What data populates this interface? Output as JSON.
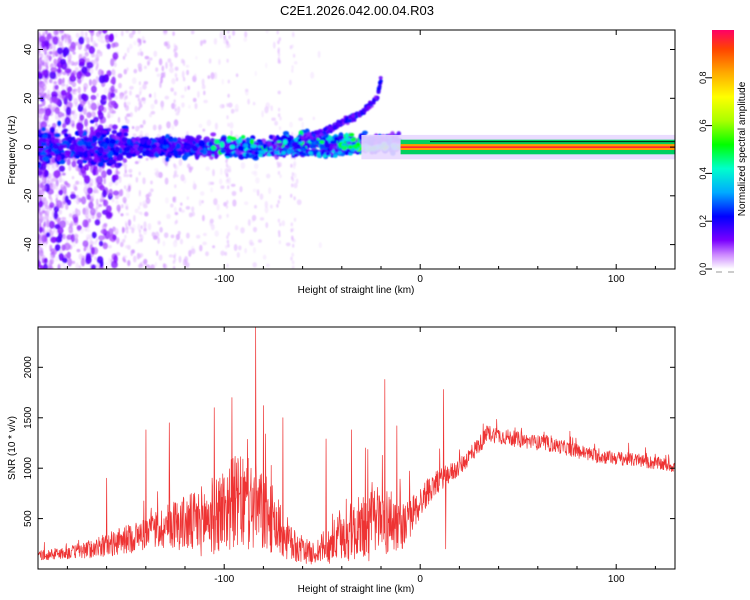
{
  "title": "C2E1.2026.042.00.04.R03",
  "chart_data": [
    {
      "type": "heatmap",
      "panel": "spectrogram",
      "xlabel": "Height of straight line (km)",
      "ylabel": "Frequency (Hz)",
      "xlim": [
        -195,
        130
      ],
      "ylim": [
        -50,
        48
      ],
      "xticks": [
        -100,
        0,
        100
      ],
      "xtick_labels": [
        "-100",
        "0",
        "100"
      ],
      "yticks": [
        -40,
        -20,
        0,
        20,
        40
      ],
      "ytick_labels": [
        "-40",
        "-20",
        "0",
        "20",
        "40"
      ],
      "colorbar": {
        "label": "Normalized spectral amplitude",
        "range": [
          0,
          1
        ],
        "ticks": [
          0.0,
          0.2,
          0.4,
          0.6,
          0.8
        ],
        "tick_labels": [
          "0.0",
          "0.2",
          "0.4",
          "0.6",
          "0.8"
        ],
        "colormap_stops": [
          "#ffffff",
          "#cc88ff",
          "#7a00ff",
          "#0000ff",
          "#00aaff",
          "#00ffcc",
          "#00ff00",
          "#aaff00",
          "#ffff00",
          "#ffaa00",
          "#ff4400",
          "#ff0066"
        ]
      },
      "features": {
        "carrier_line_start_km": -10,
        "carrier_frequency_hz": 0,
        "carrier_halfwidth_hz": 3,
        "branch": [
          [
            -62,
            3
          ],
          [
            -50,
            6
          ],
          [
            -40,
            10
          ],
          [
            -30,
            14
          ],
          [
            -22,
            20
          ],
          [
            -20,
            28
          ]
        ],
        "secondary_branch": [
          [
            -90,
            -3
          ],
          [
            -70,
            -2
          ],
          [
            -45,
            -3
          ],
          [
            -30,
            -1
          ],
          [
            -15,
            0
          ]
        ]
      }
    },
    {
      "type": "line",
      "panel": "snr",
      "xlabel": "Height of straight line (km)",
      "ylabel": "SNR (10 * v/v)",
      "xlim": [
        -195,
        130
      ],
      "ylim": [
        0,
        2400
      ],
      "xticks": [
        -100,
        0,
        100
      ],
      "xtick_labels": [
        "-100",
        "0",
        "100"
      ],
      "yticks": [
        500,
        1000,
        1500,
        2000
      ],
      "ytick_labels": [
        "500",
        "1000",
        "1500",
        "2000"
      ],
      "color": "#ee3333",
      "envelope": {
        "x": [
          -195,
          -175,
          -160,
          -140,
          -125,
          -115,
          -105,
          -95,
          -85,
          -75,
          -65,
          -55,
          -45,
          -35,
          -25,
          -15,
          -8,
          5,
          12,
          20,
          35,
          50,
          70,
          90,
          110,
          130
        ],
        "base": [
          120,
          150,
          200,
          300,
          380,
          350,
          420,
          520,
          480,
          380,
          180,
          120,
          200,
          280,
          320,
          380,
          360,
          760,
          880,
          980,
          1320,
          1260,
          1200,
          1100,
          1060,
          1000
        ],
        "amp": [
          70,
          110,
          180,
          260,
          380,
          500,
          620,
          720,
          720,
          520,
          260,
          160,
          320,
          460,
          560,
          520,
          340,
          200,
          160,
          140,
          130,
          120,
          110,
          110,
          100,
          100
        ]
      },
      "spikes": [
        [
          -84,
          2400
        ],
        [
          -105,
          1600
        ],
        [
          -96,
          1700
        ],
        [
          -80,
          1620
        ],
        [
          -70,
          1500
        ],
        [
          -18,
          1880
        ],
        [
          -35,
          1380
        ],
        [
          -48,
          1290
        ],
        [
          -28,
          1200
        ],
        [
          -12,
          1420
        ],
        [
          12,
          1780
        ],
        [
          13,
          200
        ],
        [
          -140,
          1380
        ],
        [
          -128,
          1450
        ],
        [
          -160,
          900
        ]
      ]
    }
  ]
}
